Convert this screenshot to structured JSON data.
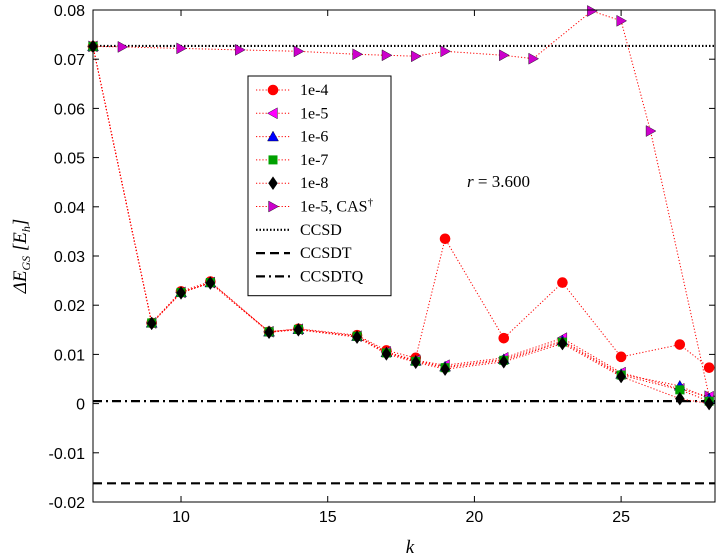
{
  "chart_data": {
    "type": "line",
    "xlabel": "k",
    "ylabel": "ΔE_GS [E_h]",
    "xlim": [
      7,
      28.2
    ],
    "ylim": [
      -0.02,
      0.08
    ],
    "xticks": [
      10,
      15,
      20,
      25
    ],
    "yticks": [
      -0.02,
      -0.01,
      0,
      0.01,
      0.02,
      0.03,
      0.04,
      0.05,
      0.06,
      0.07,
      0.08
    ],
    "ytick_labels": [
      "-0.02",
      "-0.01",
      "0",
      "0.01",
      "0.02",
      "0.03",
      "0.04",
      "0.05",
      "0.06",
      "0.07",
      "0.08"
    ],
    "annotation": {
      "text": "r = 3.600"
    },
    "legend_position": "upper-center",
    "series": [
      {
        "name": "1e-4",
        "marker": "circle",
        "color": "#ff0000",
        "line_color": "#ff0000",
        "x": [
          7,
          9,
          10,
          11,
          13,
          14,
          16,
          17,
          18,
          19,
          21,
          23,
          25,
          27,
          28
        ],
        "y": [
          0.0726,
          0.0164,
          0.0228,
          0.0248,
          0.0146,
          0.0152,
          0.0139,
          0.0108,
          0.0093,
          0.0335,
          0.0133,
          0.0246,
          0.0095,
          0.012,
          0.0073
        ]
      },
      {
        "name": "1e-5",
        "marker": "triangle-left",
        "color": "#ff00ff",
        "line_color": "#ff0000",
        "x": [
          7,
          9,
          10,
          11,
          13,
          14,
          16,
          17,
          18,
          19,
          21,
          23,
          25,
          27,
          28
        ],
        "y": [
          0.0726,
          0.0164,
          0.0226,
          0.0246,
          0.0146,
          0.0151,
          0.0137,
          0.0105,
          0.0088,
          0.0078,
          0.0093,
          0.0133,
          0.0063,
          0.003,
          0.0014
        ]
      },
      {
        "name": "1e-6",
        "marker": "triangle-up",
        "color": "#0000ff",
        "line_color": "#ff0000",
        "x": [
          7,
          9,
          10,
          11,
          13,
          14,
          16,
          17,
          18,
          19,
          21,
          23,
          25,
          27,
          28
        ],
        "y": [
          0.0726,
          0.0164,
          0.0226,
          0.0246,
          0.0146,
          0.0151,
          0.0137,
          0.0104,
          0.0087,
          0.0075,
          0.009,
          0.0128,
          0.006,
          0.0036,
          0.001
        ]
      },
      {
        "name": "1e-7",
        "marker": "square",
        "color": "#00a000",
        "line_color": "#ff0000",
        "x": [
          7,
          9,
          10,
          11,
          13,
          14,
          16,
          17,
          18,
          19,
          21,
          23,
          25,
          27,
          28
        ],
        "y": [
          0.0726,
          0.0164,
          0.0226,
          0.0246,
          0.0146,
          0.0151,
          0.0137,
          0.0103,
          0.0086,
          0.0073,
          0.0088,
          0.0125,
          0.0058,
          0.0028,
          0.0005
        ]
      },
      {
        "name": "1e-8",
        "marker": "diamond",
        "color": "#000000",
        "line_color": "#ff0000",
        "x": [
          7,
          9,
          10,
          11,
          13,
          14,
          16,
          17,
          18,
          19,
          21,
          23,
          25,
          27,
          28
        ],
        "y": [
          0.0726,
          0.0163,
          0.0225,
          0.0245,
          0.0145,
          0.015,
          0.0135,
          0.0101,
          0.0084,
          0.007,
          0.0085,
          0.0122,
          0.0055,
          0.001,
          0.0
        ]
      },
      {
        "name": "1e-5, CAS",
        "name_sup": "†",
        "marker": "triangle-right",
        "color": "#cc00cc",
        "line_color": "#ff0000",
        "x": [
          7,
          8,
          10,
          12,
          14,
          16,
          17,
          18,
          19,
          21,
          22,
          24,
          25,
          26,
          28
        ],
        "y": [
          0.0726,
          0.0725,
          0.0722,
          0.0719,
          0.0716,
          0.071,
          0.0708,
          0.0706,
          0.0716,
          0.0708,
          0.0701,
          0.0798,
          0.0778,
          0.0554,
          0.0015
        ]
      }
    ],
    "reference_lines": [
      {
        "name": "CCSD",
        "y": 0.0727,
        "style": "dotted"
      },
      {
        "name": "CCSDT",
        "y": -0.0162,
        "style": "dashed"
      },
      {
        "name": "CCSDTQ",
        "y": 0.0005,
        "style": "dashdot"
      }
    ]
  }
}
